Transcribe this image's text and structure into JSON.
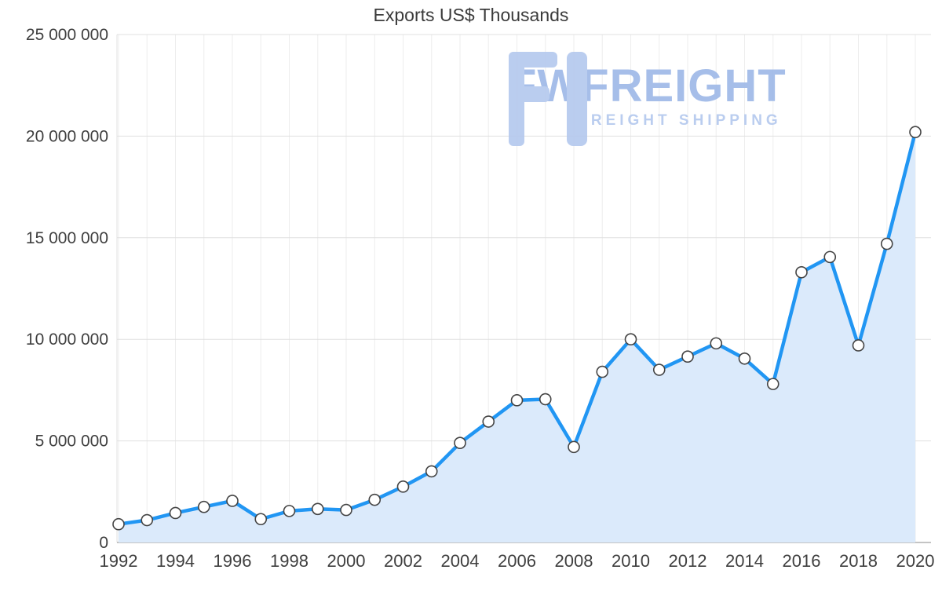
{
  "title": "Exports US$ Thousands",
  "watermark": {
    "brand": "FWFREIGHT",
    "tagline": "FREIGHT SHIPPING",
    "logo_color": "#b5c9ee",
    "text_color": "#9fb9e8"
  },
  "chart_data": {
    "type": "line",
    "title": "Exports US$ Thousands",
    "x": [
      1992,
      1993,
      1994,
      1995,
      1996,
      1997,
      1998,
      1999,
      2000,
      2001,
      2002,
      2003,
      2004,
      2005,
      2006,
      2007,
      2008,
      2009,
      2010,
      2011,
      2012,
      2013,
      2014,
      2015,
      2016,
      2017,
      2018,
      2019,
      2020
    ],
    "values": [
      900000,
      1100000,
      1450000,
      1750000,
      2050000,
      1150000,
      1550000,
      1650000,
      1600000,
      2100000,
      2750000,
      3500000,
      4900000,
      5950000,
      7000000,
      7050000,
      4700000,
      8400000,
      10000000,
      8500000,
      9150000,
      9800000,
      9050000,
      7800000,
      13300000,
      14050000,
      9700000,
      14700000,
      20200000
    ],
    "ylim": [
      0,
      25000000
    ],
    "ytick_interval": 5000000,
    "ytick_labels": [
      "0",
      "5 000 000",
      "10 000 000",
      "15 000 000",
      "20 000 000",
      "25 000 000"
    ],
    "xtick_labels": [
      "1992",
      "1994",
      "1996",
      "1998",
      "2000",
      "2002",
      "2004",
      "2006",
      "2008",
      "2010",
      "2012",
      "2014",
      "2016",
      "2018",
      "2020"
    ],
    "grid": true,
    "legend": "none",
    "line_color": "#2196f3",
    "area_fill_color": "#dbeafb",
    "marker_fill": "#ffffff",
    "marker_stroke": "#444444",
    "gridline_color": "#e0e0e0",
    "vertical_gridline_color": "#ededed",
    "axis_line_color": "#b0b0b0",
    "tick_label_color": "#3f3f3f"
  }
}
